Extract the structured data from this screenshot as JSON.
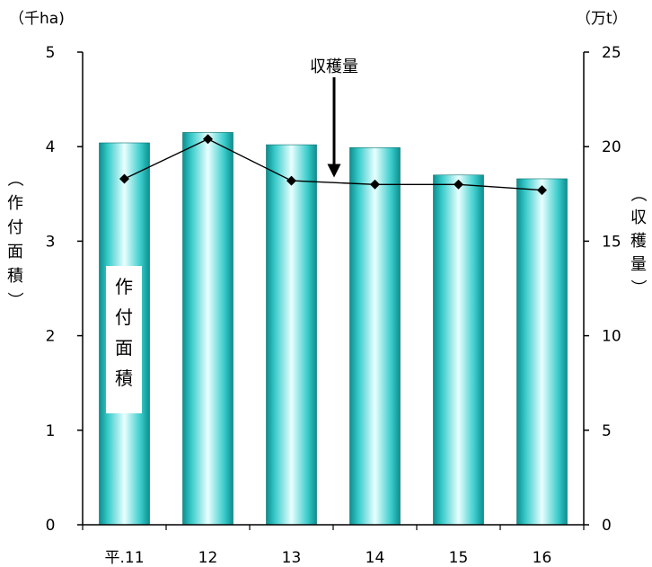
{
  "chart_data": {
    "type": "bar",
    "categories": [
      "平.11",
      "12",
      "13",
      "14",
      "15",
      "16"
    ],
    "series": [
      {
        "type": "bar",
        "axis": "left",
        "values": [
          4.04,
          4.15,
          4.02,
          3.99,
          3.7,
          3.66
        ],
        "color": "#1fb5b5"
      },
      {
        "type": "line",
        "axis": "right",
        "values": [
          18.3,
          20.4,
          18.2,
          18.0,
          18.0,
          17.7
        ],
        "color": "#000000"
      }
    ],
    "left_axis": {
      "unit": "（千ha)",
      "label": "（作付面積）",
      "range": [
        0,
        5
      ],
      "ticks": [
        "0",
        "1",
        "2",
        "3",
        "4",
        "5"
      ]
    },
    "right_axis": {
      "unit": "（万t）",
      "label": "（収穫量）",
      "range": [
        0,
        25
      ],
      "ticks": [
        "0",
        "5",
        "10",
        "15",
        "20",
        "25"
      ]
    },
    "annotations": {
      "line_label": "収穫量",
      "bar_label": "作付面積"
    },
    "grid": false,
    "colors": {
      "bar_light": "#e9ffff",
      "bar_mid": "#3ccccc",
      "bar_dark": "#0c8f8f",
      "line": "#000000"
    }
  }
}
